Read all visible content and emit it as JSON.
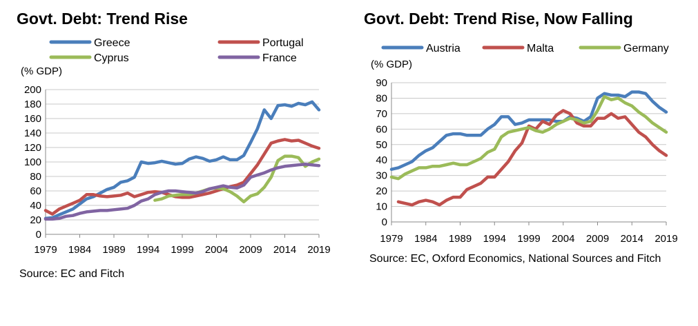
{
  "charts": [
    {
      "title": "Govt. Debt: Trend Rise",
      "source": "Source: EC and Fitch"
    },
    {
      "title": "Govt. Debt: Trend Rise, Now Falling",
      "source": "Source: EC,  Oxford Economics, National Sources and Fitch"
    }
  ],
  "chart_data": [
    {
      "type": "line",
      "title": "Govt. Debt: Trend Rise",
      "ylabel": "(% GDP)",
      "xlabel": "",
      "xlim": [
        1979,
        2019
      ],
      "ylim": [
        0,
        200
      ],
      "yticks": [
        0,
        20,
        40,
        60,
        80,
        100,
        120,
        140,
        160,
        180,
        200
      ],
      "xticks": [
        1979,
        1984,
        1989,
        1994,
        1999,
        2004,
        2009,
        2014,
        2019
      ],
      "grid": true,
      "legend": "top",
      "series": [
        {
          "name": "Greece",
          "color": "#4a7ebb",
          "x": [
            1979,
            1980,
            1981,
            1982,
            1983,
            1984,
            1985,
            1986,
            1987,
            1988,
            1989,
            1990,
            1991,
            1992,
            1993,
            1994,
            1995,
            1996,
            1997,
            1998,
            1999,
            2000,
            2001,
            2002,
            2003,
            2004,
            2005,
            2006,
            2007,
            2008,
            2009,
            2010,
            2011,
            2012,
            2013,
            2014,
            2015,
            2016,
            2017,
            2018,
            2019
          ],
          "values": [
            22,
            23,
            27,
            31,
            35,
            42,
            49,
            52,
            57,
            62,
            65,
            72,
            74,
            79,
            100,
            98,
            99,
            101,
            99,
            97,
            98,
            104,
            107,
            105,
            101,
            103,
            107,
            103,
            103,
            109,
            127,
            146,
            172,
            160,
            178,
            179,
            177,
            181,
            179,
            183,
            172
          ]
        },
        {
          "name": "Portugal",
          "color": "#c0504d",
          "x": [
            1979,
            1980,
            1981,
            1982,
            1983,
            1984,
            1985,
            1986,
            1987,
            1988,
            1989,
            1990,
            1991,
            1992,
            1993,
            1994,
            1995,
            1996,
            1997,
            1998,
            1999,
            2000,
            2001,
            2002,
            2003,
            2004,
            2005,
            2006,
            2007,
            2008,
            2009,
            2010,
            2011,
            2012,
            2013,
            2014,
            2015,
            2016,
            2017,
            2018,
            2019
          ],
          "values": [
            33,
            28,
            35,
            39,
            43,
            47,
            55,
            55,
            53,
            52,
            53,
            54,
            57,
            52,
            55,
            58,
            59,
            58,
            55,
            52,
            51,
            51,
            53,
            55,
            57,
            60,
            63,
            66,
            68,
            72,
            84,
            96,
            111,
            126,
            129,
            131,
            129,
            130,
            126,
            122,
            119
          ]
        },
        {
          "name": "Cyprus",
          "color": "#9bbb59",
          "x": [
            1995,
            1996,
            1997,
            1998,
            1999,
            2000,
            2001,
            2002,
            2003,
            2004,
            2005,
            2006,
            2007,
            2008,
            2009,
            2010,
            2011,
            2012,
            2013,
            2014,
            2015,
            2016,
            2017,
            2018,
            2019
          ],
          "values": [
            47,
            49,
            53,
            54,
            55,
            55,
            57,
            60,
            63,
            64,
            63,
            59,
            53,
            45,
            53,
            56,
            65,
            79,
            102,
            108,
            108,
            106,
            94,
            100,
            104
          ]
        },
        {
          "name": "France",
          "color": "#8064a2",
          "x": [
            1979,
            1980,
            1981,
            1982,
            1983,
            1984,
            1985,
            1986,
            1987,
            1988,
            1989,
            1990,
            1991,
            1992,
            1993,
            1994,
            1995,
            1996,
            1997,
            1998,
            1999,
            2000,
            2001,
            2002,
            2003,
            2004,
            2005,
            2006,
            2007,
            2008,
            2009,
            2010,
            2011,
            2012,
            2013,
            2014,
            2015,
            2016,
            2017,
            2018,
            2019
          ],
          "values": [
            21,
            21,
            22,
            25,
            26,
            29,
            31,
            32,
            33,
            33,
            34,
            35,
            36,
            40,
            46,
            49,
            55,
            58,
            60,
            60,
            59,
            58,
            57,
            59,
            63,
            65,
            67,
            65,
            64,
            68,
            79,
            82,
            85,
            89,
            92,
            94,
            95,
            96,
            97,
            96,
            95
          ]
        }
      ]
    },
    {
      "type": "line",
      "title": "Govt. Debt: Trend Rise, Now Falling",
      "ylabel": "(% GDP)",
      "xlabel": "",
      "xlim": [
        1979,
        2019
      ],
      "ylim": [
        0,
        90
      ],
      "yticks": [
        0,
        10,
        20,
        30,
        40,
        50,
        60,
        70,
        80,
        90
      ],
      "xticks": [
        1979,
        1984,
        1989,
        1994,
        1999,
        2004,
        2009,
        2014,
        2019
      ],
      "grid": true,
      "legend": "top",
      "series": [
        {
          "name": "Austria",
          "color": "#4a7ebb",
          "x": [
            1979,
            1980,
            1981,
            1982,
            1983,
            1984,
            1985,
            1986,
            1987,
            1988,
            1989,
            1990,
            1991,
            1992,
            1993,
            1994,
            1995,
            1996,
            1997,
            1998,
            1999,
            2000,
            2001,
            2002,
            2003,
            2004,
            2005,
            2006,
            2007,
            2008,
            2009,
            2010,
            2011,
            2012,
            2013,
            2014,
            2015,
            2016,
            2017,
            2018,
            2019
          ],
          "values": [
            34,
            35,
            37,
            39,
            43,
            46,
            48,
            52,
            56,
            57,
            57,
            56,
            56,
            56,
            60,
            63,
            68,
            68,
            63,
            64,
            66,
            66,
            66,
            66,
            65,
            65,
            68,
            67,
            65,
            68,
            80,
            83,
            82,
            82,
            81,
            84,
            84,
            83,
            78,
            74,
            71
          ]
        },
        {
          "name": "Malta",
          "color": "#c0504d",
          "x": [
            1980,
            1981,
            1982,
            1983,
            1984,
            1985,
            1986,
            1987,
            1988,
            1989,
            1990,
            1991,
            1992,
            1993,
            1994,
            1995,
            1996,
            1997,
            1998,
            1999,
            2000,
            2001,
            2002,
            2003,
            2004,
            2005,
            2006,
            2007,
            2008,
            2009,
            2010,
            2011,
            2012,
            2013,
            2014,
            2015,
            2016,
            2017,
            2018,
            2019
          ],
          "values": [
            13,
            12,
            11,
            13,
            14,
            13,
            11,
            14,
            16,
            16,
            21,
            23,
            25,
            29,
            29,
            34,
            39,
            46,
            51,
            62,
            60,
            65,
            63,
            69,
            72,
            70,
            64,
            62,
            62,
            67,
            67,
            70,
            67,
            68,
            63,
            58,
            55,
            50,
            46,
            43
          ]
        },
        {
          "name": "Germany",
          "color": "#9bbb59",
          "x": [
            1979,
            1980,
            1981,
            1982,
            1983,
            1984,
            1985,
            1986,
            1987,
            1988,
            1989,
            1990,
            1991,
            1992,
            1993,
            1994,
            1995,
            1996,
            1997,
            1998,
            1999,
            2000,
            2001,
            2002,
            2003,
            2004,
            2005,
            2006,
            2007,
            2008,
            2009,
            2010,
            2011,
            2012,
            2013,
            2014,
            2015,
            2016,
            2017,
            2018,
            2019
          ],
          "values": [
            29,
            28,
            31,
            33,
            35,
            35,
            36,
            36,
            37,
            38,
            37,
            37,
            39,
            41,
            45,
            47,
            55,
            58,
            59,
            60,
            61,
            59,
            58,
            60,
            63,
            65,
            67,
            66,
            64,
            65,
            72,
            81,
            79,
            80,
            77,
            75,
            71,
            68,
            64,
            61,
            58
          ]
        }
      ]
    }
  ]
}
